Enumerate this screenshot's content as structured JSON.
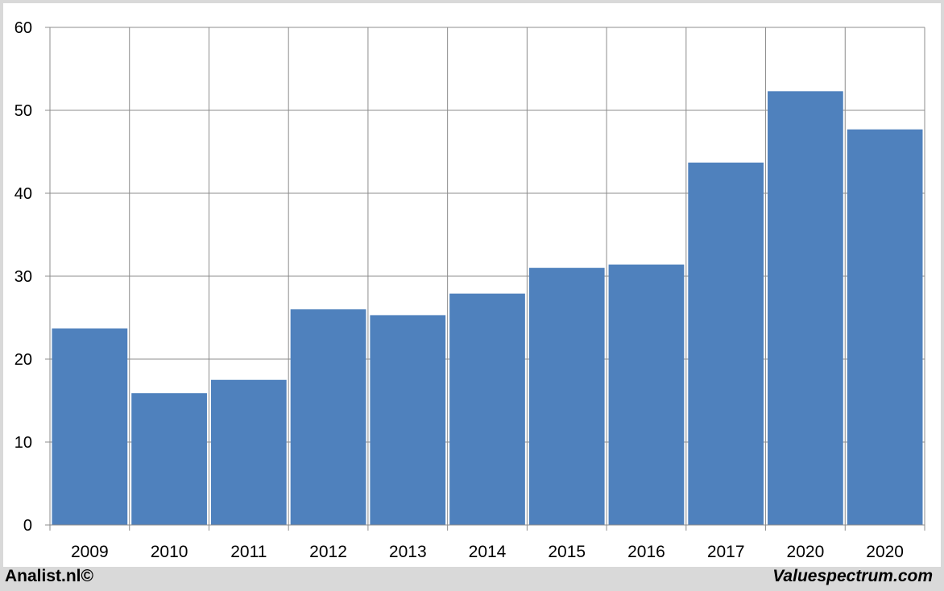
{
  "chart_data": {
    "type": "bar",
    "categories": [
      "2009",
      "2010",
      "2011",
      "2012",
      "2013",
      "2014",
      "2015",
      "2016",
      "2017",
      "2020",
      "2020"
    ],
    "values": [
      23.7,
      15.9,
      17.5,
      26.0,
      25.3,
      27.9,
      31.0,
      31.4,
      43.7,
      52.3,
      47.7
    ],
    "title": "",
    "xlabel": "",
    "ylabel": "",
    "ylim": [
      0,
      60
    ],
    "yticks": [
      "0",
      "10",
      "20",
      "30",
      "40",
      "50",
      "60"
    ],
    "grid": true,
    "bar_color": "#4f81bd"
  },
  "footer": {
    "left": "Analist.nl©",
    "right": "Valuespectrum.com"
  }
}
